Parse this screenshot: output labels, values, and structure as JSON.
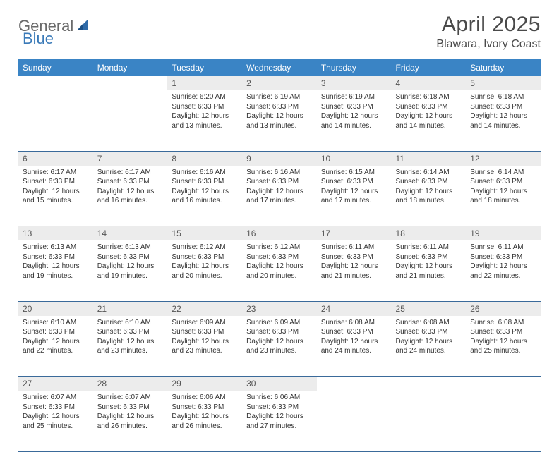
{
  "brand": {
    "part1": "General",
    "part2": "Blue"
  },
  "title": "April 2025",
  "location": "Blawara, Ivory Coast",
  "colors": {
    "header_bg": "#3a84c5",
    "header_text": "#ffffff",
    "daynum_bg": "#ececec",
    "border": "#3a6a9a",
    "brand_gray": "#6a6a6a",
    "brand_blue": "#3a7ab8"
  },
  "day_headers": [
    "Sunday",
    "Monday",
    "Tuesday",
    "Wednesday",
    "Thursday",
    "Friday",
    "Saturday"
  ],
  "weeks": [
    [
      {
        "n": "",
        "sr": "",
        "ss": "",
        "dl": ""
      },
      {
        "n": "",
        "sr": "",
        "ss": "",
        "dl": ""
      },
      {
        "n": "1",
        "sr": "6:20 AM",
        "ss": "6:33 PM",
        "dl": "12 hours and 13 minutes."
      },
      {
        "n": "2",
        "sr": "6:19 AM",
        "ss": "6:33 PM",
        "dl": "12 hours and 13 minutes."
      },
      {
        "n": "3",
        "sr": "6:19 AM",
        "ss": "6:33 PM",
        "dl": "12 hours and 14 minutes."
      },
      {
        "n": "4",
        "sr": "6:18 AM",
        "ss": "6:33 PM",
        "dl": "12 hours and 14 minutes."
      },
      {
        "n": "5",
        "sr": "6:18 AM",
        "ss": "6:33 PM",
        "dl": "12 hours and 14 minutes."
      }
    ],
    [
      {
        "n": "6",
        "sr": "6:17 AM",
        "ss": "6:33 PM",
        "dl": "12 hours and 15 minutes."
      },
      {
        "n": "7",
        "sr": "6:17 AM",
        "ss": "6:33 PM",
        "dl": "12 hours and 16 minutes."
      },
      {
        "n": "8",
        "sr": "6:16 AM",
        "ss": "6:33 PM",
        "dl": "12 hours and 16 minutes."
      },
      {
        "n": "9",
        "sr": "6:16 AM",
        "ss": "6:33 PM",
        "dl": "12 hours and 17 minutes."
      },
      {
        "n": "10",
        "sr": "6:15 AM",
        "ss": "6:33 PM",
        "dl": "12 hours and 17 minutes."
      },
      {
        "n": "11",
        "sr": "6:14 AM",
        "ss": "6:33 PM",
        "dl": "12 hours and 18 minutes."
      },
      {
        "n": "12",
        "sr": "6:14 AM",
        "ss": "6:33 PM",
        "dl": "12 hours and 18 minutes."
      }
    ],
    [
      {
        "n": "13",
        "sr": "6:13 AM",
        "ss": "6:33 PM",
        "dl": "12 hours and 19 minutes."
      },
      {
        "n": "14",
        "sr": "6:13 AM",
        "ss": "6:33 PM",
        "dl": "12 hours and 19 minutes."
      },
      {
        "n": "15",
        "sr": "6:12 AM",
        "ss": "6:33 PM",
        "dl": "12 hours and 20 minutes."
      },
      {
        "n": "16",
        "sr": "6:12 AM",
        "ss": "6:33 PM",
        "dl": "12 hours and 20 minutes."
      },
      {
        "n": "17",
        "sr": "6:11 AM",
        "ss": "6:33 PM",
        "dl": "12 hours and 21 minutes."
      },
      {
        "n": "18",
        "sr": "6:11 AM",
        "ss": "6:33 PM",
        "dl": "12 hours and 21 minutes."
      },
      {
        "n": "19",
        "sr": "6:11 AM",
        "ss": "6:33 PM",
        "dl": "12 hours and 22 minutes."
      }
    ],
    [
      {
        "n": "20",
        "sr": "6:10 AM",
        "ss": "6:33 PM",
        "dl": "12 hours and 22 minutes."
      },
      {
        "n": "21",
        "sr": "6:10 AM",
        "ss": "6:33 PM",
        "dl": "12 hours and 23 minutes."
      },
      {
        "n": "22",
        "sr": "6:09 AM",
        "ss": "6:33 PM",
        "dl": "12 hours and 23 minutes."
      },
      {
        "n": "23",
        "sr": "6:09 AM",
        "ss": "6:33 PM",
        "dl": "12 hours and 23 minutes."
      },
      {
        "n": "24",
        "sr": "6:08 AM",
        "ss": "6:33 PM",
        "dl": "12 hours and 24 minutes."
      },
      {
        "n": "25",
        "sr": "6:08 AM",
        "ss": "6:33 PM",
        "dl": "12 hours and 24 minutes."
      },
      {
        "n": "26",
        "sr": "6:08 AM",
        "ss": "6:33 PM",
        "dl": "12 hours and 25 minutes."
      }
    ],
    [
      {
        "n": "27",
        "sr": "6:07 AM",
        "ss": "6:33 PM",
        "dl": "12 hours and 25 minutes."
      },
      {
        "n": "28",
        "sr": "6:07 AM",
        "ss": "6:33 PM",
        "dl": "12 hours and 26 minutes."
      },
      {
        "n": "29",
        "sr": "6:06 AM",
        "ss": "6:33 PM",
        "dl": "12 hours and 26 minutes."
      },
      {
        "n": "30",
        "sr": "6:06 AM",
        "ss": "6:33 PM",
        "dl": "12 hours and 27 minutes."
      },
      {
        "n": "",
        "sr": "",
        "ss": "",
        "dl": ""
      },
      {
        "n": "",
        "sr": "",
        "ss": "",
        "dl": ""
      },
      {
        "n": "",
        "sr": "",
        "ss": "",
        "dl": ""
      }
    ]
  ],
  "labels": {
    "sunrise": "Sunrise:",
    "sunset": "Sunset:",
    "daylight": "Daylight:"
  }
}
